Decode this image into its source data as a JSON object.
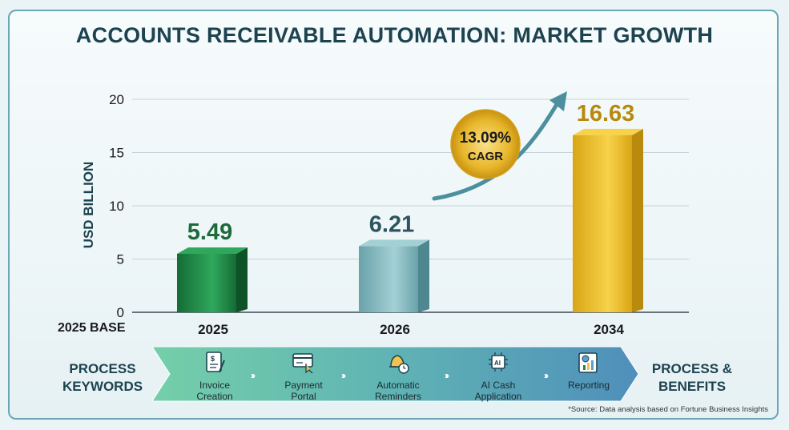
{
  "title": "ACCOUNTS RECEIVABLE AUTOMATION: MARKET GROWTH",
  "colors": {
    "title": "#1d4350",
    "bar_2025": "#1f8a47",
    "bar_2026": "#7fb6bd",
    "bar_2034": "#e6b51e",
    "arrow": "#4c8f9e",
    "flow_start": "#6cc8a3",
    "flow_end": "#4d8fb9"
  },
  "chart_data": {
    "type": "bar",
    "title": "ACCOUNTS RECEIVABLE AUTOMATION: MARKET GROWTH",
    "ylabel": "USD BILLION",
    "xlabel": "",
    "base_label": "2025 BASE",
    "categories": [
      "2025",
      "2026",
      "2034"
    ],
    "values": [
      5.49,
      6.21,
      16.63
    ],
    "value_labels": [
      "5.49",
      "6.21",
      "16.63"
    ],
    "ylim": [
      0,
      20
    ],
    "yticks": [
      "0",
      "5",
      "10",
      "15",
      "20"
    ],
    "grid": true,
    "annotation": {
      "value": "13.09%",
      "label": "CAGR"
    }
  },
  "flow": {
    "left_label_1": "PROCESS",
    "left_label_2": "KEYWORDS",
    "right_label_1": "PROCESS &",
    "right_label_2": "BENEFITS",
    "items": [
      {
        "line1": "Invoice",
        "line2": "Creation",
        "icon": "invoice-icon"
      },
      {
        "line1": "Payment",
        "line2": "Portal",
        "icon": "payment-portal-icon"
      },
      {
        "line1": "Automatic",
        "line2": "Reminders",
        "icon": "bell-clock-icon"
      },
      {
        "line1": "AI Cash",
        "line2": "Application",
        "icon": "ai-chip-icon"
      },
      {
        "line1": "Reporting",
        "line2": "",
        "icon": "report-chart-icon"
      }
    ],
    "chevron": "›››"
  },
  "source": "*Source: Data analysis based on Fortune Business Insights"
}
